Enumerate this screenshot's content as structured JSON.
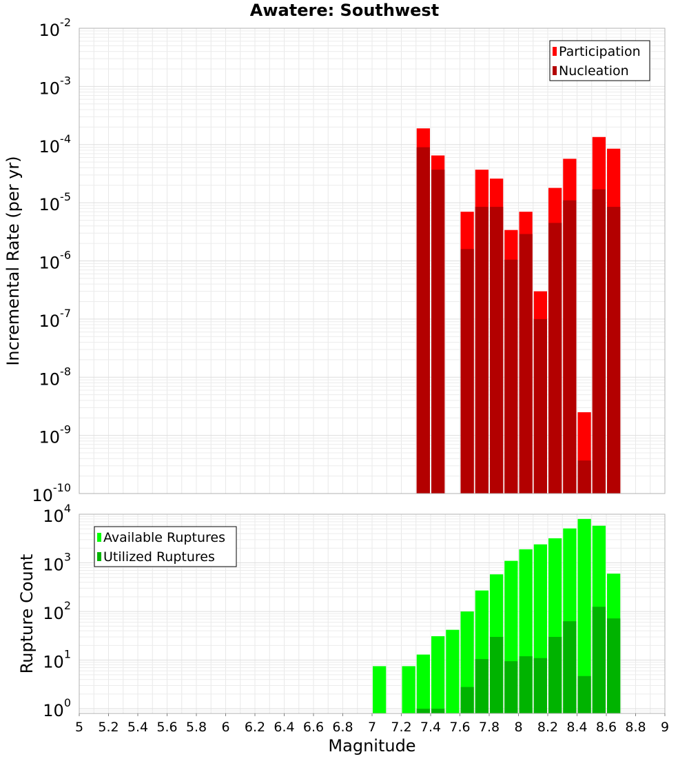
{
  "chart_data": [
    {
      "type": "bar",
      "title": "Awatere: Southwest",
      "xlabel": "Magnitude",
      "ylabel": "Incremental Rate (per yr)",
      "yscale": "log",
      "ylim": [
        1e-10,
        0.01
      ],
      "xlim": [
        5,
        9
      ],
      "grid": true,
      "legend_position": "top-right",
      "bin_width": 0.1,
      "y_ticks": [
        {
          "base": "10",
          "exp": "-10",
          "value": 1e-10
        },
        {
          "base": "10",
          "exp": "-9",
          "value": 1e-09
        },
        {
          "base": "10",
          "exp": "-8",
          "value": 1e-08
        },
        {
          "base": "10",
          "exp": "-7",
          "value": 1e-07
        },
        {
          "base": "10",
          "exp": "-6",
          "value": 1e-06
        },
        {
          "base": "10",
          "exp": "-5",
          "value": 1e-05
        },
        {
          "base": "10",
          "exp": "-4",
          "value": 0.0001
        },
        {
          "base": "10",
          "exp": "-3",
          "value": 0.001
        },
        {
          "base": "10",
          "exp": "-2",
          "value": 0.01
        }
      ],
      "x": [
        7.35,
        7.45,
        7.65,
        7.75,
        7.85,
        7.95,
        8.05,
        8.15,
        8.25,
        8.35,
        8.45,
        8.55,
        8.65
      ],
      "series": [
        {
          "name": "Participation",
          "color": "#ff0000",
          "values": [
            0.00019,
            6.5e-05,
            7e-06,
            3.7e-05,
            2.6e-05,
            3.4e-06,
            7e-06,
            3e-07,
            1.8e-05,
            5.7e-05,
            2.5e-09,
            0.000135,
            8.5e-05
          ]
        },
        {
          "name": "Nucleation",
          "color": "#b30000",
          "values": [
            9e-05,
            3.7e-05,
            1.6e-06,
            8.5e-06,
            8.5e-06,
            1.05e-06,
            2.9e-06,
            1e-07,
            4.5e-06,
            1.1e-05,
            3.7e-10,
            1.7e-05,
            8.5e-06
          ]
        }
      ]
    },
    {
      "type": "bar",
      "xlabel": "Magnitude",
      "ylabel": "Rupture Count",
      "yscale": "log",
      "ylim": [
        0.8,
        10000
      ],
      "xlim": [
        5,
        9
      ],
      "grid": true,
      "legend_position": "top-left",
      "bin_width": 0.1,
      "x_ticks": [
        "5",
        "5.2",
        "5.4",
        "5.6",
        "5.8",
        "6",
        "6.2",
        "6.4",
        "6.6",
        "6.8",
        "7",
        "7.2",
        "7.4",
        "7.6",
        "7.8",
        "8",
        "8.2",
        "8.4",
        "8.6",
        "8.8",
        "9"
      ],
      "y_ticks": [
        {
          "base": "10",
          "exp": "0",
          "value": 1
        },
        {
          "base": "10",
          "exp": "1",
          "value": 10
        },
        {
          "base": "10",
          "exp": "2",
          "value": 100
        },
        {
          "base": "10",
          "exp": "3",
          "value": 1000
        },
        {
          "base": "10",
          "exp": "4",
          "value": 10000
        }
      ],
      "x": [
        7.05,
        7.25,
        7.35,
        7.45,
        7.55,
        7.65,
        7.75,
        7.85,
        7.95,
        8.05,
        8.15,
        8.25,
        8.35,
        8.45,
        8.55,
        8.65
      ],
      "series": [
        {
          "name": "Available Ruptures",
          "color": "#00ff00",
          "values": [
            7.5,
            7.5,
            13,
            31,
            42,
            100,
            270,
            580,
            1100,
            1900,
            2400,
            3200,
            5100,
            8000,
            5800,
            600
          ]
        },
        {
          "name": "Utilized Ruptures",
          "color": "#00b300",
          "values": [
            null,
            null,
            1,
            1,
            null,
            2.8,
            10.5,
            30,
            9.5,
            12,
            11,
            30,
            63,
            4.7,
            125,
            72
          ]
        }
      ]
    }
  ]
}
